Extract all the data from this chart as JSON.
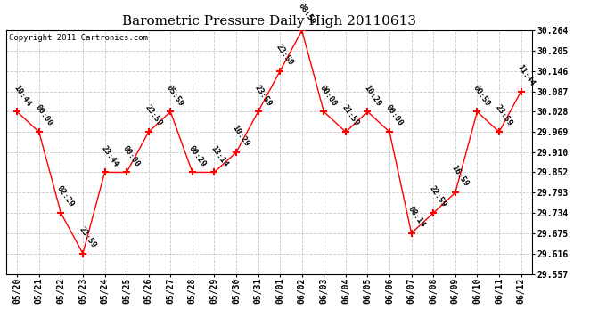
{
  "title": "Barometric Pressure Daily High 20110613",
  "copyright": "Copyright 2011 Cartronics.com",
  "x_labels": [
    "05/20",
    "05/21",
    "05/22",
    "05/23",
    "05/24",
    "05/25",
    "05/26",
    "05/27",
    "05/28",
    "05/29",
    "05/30",
    "05/31",
    "06/01",
    "06/02",
    "06/03",
    "06/04",
    "06/05",
    "06/06",
    "06/07",
    "06/08",
    "06/09",
    "06/10",
    "06/11",
    "06/12"
  ],
  "y_values": [
    30.028,
    29.969,
    29.734,
    29.616,
    29.852,
    29.852,
    29.969,
    30.028,
    29.852,
    29.852,
    29.91,
    30.028,
    30.146,
    30.264,
    30.028,
    29.969,
    30.028,
    29.969,
    29.675,
    29.734,
    29.793,
    30.028,
    29.969,
    30.087
  ],
  "time_labels": [
    "10:44",
    "00:00",
    "02:29",
    "23:59",
    "23:44",
    "00:00",
    "23:59",
    "05:59",
    "00:29",
    "13:14",
    "10:29",
    "23:59",
    "23:59",
    "08:59",
    "00:00",
    "21:59",
    "10:29",
    "00:00",
    "08:14",
    "22:59",
    "16:59",
    "00:59",
    "23:59",
    "11:44"
  ],
  "ylim_min": 29.557,
  "ylim_max": 30.264,
  "yticks": [
    29.557,
    29.616,
    29.675,
    29.734,
    29.793,
    29.852,
    29.91,
    29.969,
    30.028,
    30.087,
    30.146,
    30.205,
    30.264
  ],
  "line_color": "red",
  "marker_color": "red",
  "grid_color": "#c8c8c8",
  "bg_color": "white",
  "title_fontsize": 11,
  "tick_fontsize": 7,
  "annot_fontsize": 6.5
}
